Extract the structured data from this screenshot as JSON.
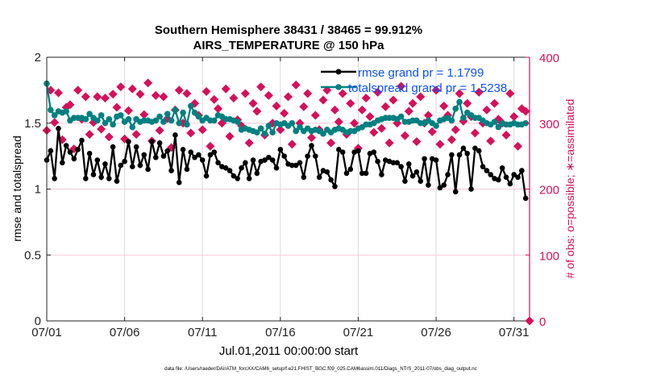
{
  "chart_data": {
    "type": "line",
    "title": "Southern Hemisphere 38431 / 38465 = 99.912%",
    "subtitle": "AIRS_TEMPERATURE @ 150 hPa",
    "xlabel": "Jul.01,2011 00:00:00 start",
    "ylabel": "rmse and totalspread",
    "ylabel_right": "# of obs: o=possible; ∗=assimilated",
    "footer": "data file: /Users/raeder/DAI/ATM_forcXX/CAM6_setup/f.e21.FHIST_BGC.f09_025.CAM6assim.011/Diags_NTrS_2011-07/obs_diag_output.nc",
    "x_unit": "days since 07/01 00Z",
    "x_step_days": 0.25,
    "xlim": [
      0,
      31
    ],
    "ylim": [
      0,
      2
    ],
    "ylim_right": [
      0,
      400
    ],
    "x_ticks": [
      {
        "day": 0,
        "label": "07/01"
      },
      {
        "day": 5,
        "label": "07/06"
      },
      {
        "day": 10,
        "label": "07/11"
      },
      {
        "day": 15,
        "label": "07/16"
      },
      {
        "day": 20,
        "label": "07/21"
      },
      {
        "day": 25,
        "label": "07/26"
      },
      {
        "day": 30,
        "label": "07/31"
      }
    ],
    "y_ticks": [
      {
        "v": 0,
        "label": "0"
      },
      {
        "v": 0.5,
        "label": "0.5"
      },
      {
        "v": 1,
        "label": "1"
      },
      {
        "v": 1.5,
        "label": "1.5"
      },
      {
        "v": 2,
        "label": "2"
      }
    ],
    "y_ticks_right": [
      {
        "v": 0,
        "label": "0"
      },
      {
        "v": 100,
        "label": "100"
      },
      {
        "v": 200,
        "label": "200"
      },
      {
        "v": 300,
        "label": "300"
      },
      {
        "v": 400,
        "label": "400"
      }
    ],
    "grid": true,
    "legend_position": "top-right",
    "colors": {
      "rmse": "#000000",
      "spread": "#008080",
      "obs": "#d6105a",
      "legend_text": "#0a50ff",
      "right_axis": "#d6105a"
    },
    "series": [
      {
        "name": "rmse grand pr = 1.1799",
        "key": "rmse",
        "axis": "left",
        "values": [
          1.22,
          1.29,
          1.08,
          1.46,
          1.2,
          1.33,
          1.28,
          1.23,
          1.3,
          1.37,
          1.08,
          1.27,
          1.11,
          1.22,
          1.09,
          1.19,
          1.08,
          1.32,
          1.06,
          1.18,
          1.21,
          1.36,
          1.17,
          1.32,
          1.18,
          1.26,
          1.15,
          1.36,
          1.24,
          1.35,
          1.25,
          1.29,
          1.14,
          1.41,
          1.05,
          1.3,
          1.15,
          1.28,
          1.24,
          1.26,
          1.22,
          1.1,
          1.26,
          1.28,
          1.2,
          1.17,
          1.16,
          1.14,
          1.1,
          1.08,
          1.16,
          1.2,
          1.08,
          1.22,
          1.12,
          1.21,
          1.22,
          1.24,
          1.22,
          1.16,
          1.3,
          1.25,
          1.19,
          1.18,
          1.18,
          1.2,
          1.09,
          1.25,
          1.33,
          1.25,
          1.09,
          1.14,
          1.13,
          1.07,
          1.02,
          1.3,
          1.28,
          1.12,
          1.15,
          1.28,
          1.29,
          1.12,
          1.12,
          1.27,
          1.28,
          1.21,
          1.11,
          1.22,
          1.21,
          1.2,
          1.2,
          1.17,
          1.06,
          1.19,
          1.1,
          1.13,
          1.06,
          1.23,
          1.03,
          1.23,
          1.22,
          1.01,
          1.03,
          1.11,
          1.26,
          0.98,
          1.26,
          1.31,
          1.27,
          1.0,
          1.31,
          1.29,
          1.17,
          1.14,
          1.11,
          1.08,
          1.07,
          1.16,
          1.09,
          1.04,
          1.11,
          1.09,
          1.14,
          0.93
        ]
      },
      {
        "name": "totalspread grand pr = 1.5238",
        "key": "spread",
        "axis": "left",
        "values": [
          1.8,
          1.6,
          1.56,
          1.59,
          1.58,
          1.59,
          1.52,
          1.54,
          1.54,
          1.54,
          1.53,
          1.57,
          1.54,
          1.52,
          1.56,
          1.5,
          1.53,
          1.49,
          1.55,
          1.56,
          1.51,
          1.53,
          1.47,
          1.53,
          1.51,
          1.52,
          1.52,
          1.51,
          1.52,
          1.55,
          1.51,
          1.57,
          1.52,
          1.6,
          1.5,
          1.58,
          1.49,
          1.63,
          1.58,
          1.55,
          1.52,
          1.54,
          1.52,
          1.52,
          1.56,
          1.55,
          1.53,
          1.53,
          1.52,
          1.51,
          1.45,
          1.46,
          1.45,
          1.44,
          1.43,
          1.46,
          1.42,
          1.48,
          1.43,
          1.5,
          1.49,
          1.5,
          1.48,
          1.5,
          1.44,
          1.47,
          1.44,
          1.46,
          1.44,
          1.45,
          1.44,
          1.42,
          1.45,
          1.43,
          1.45,
          1.46,
          1.45,
          1.43,
          1.44,
          1.44,
          1.46,
          1.47,
          1.49,
          1.49,
          1.5,
          1.52,
          1.53,
          1.54,
          1.54,
          1.54,
          1.53,
          1.55,
          1.51,
          1.51,
          1.52,
          1.52,
          1.5,
          1.5,
          1.52,
          1.5,
          1.48,
          1.52,
          1.53,
          1.54,
          1.52,
          1.61,
          1.66,
          1.54,
          1.58,
          1.56,
          1.54,
          1.54,
          1.52,
          1.5,
          1.49,
          1.51,
          1.47,
          1.5,
          1.49,
          1.49,
          1.5,
          1.49,
          1.49,
          1.5
        ]
      },
      {
        "name": "obs assimilated",
        "key": "obs",
        "axis": "right",
        "values": [
          289,
          350,
          301,
          346,
          275,
          324,
          328,
          261,
          350,
          306,
          340,
          283,
          301,
          340,
          291,
          338,
          279,
          344,
          324,
          355,
          276,
          319,
          352,
          283,
          344,
          313,
          361,
          273,
          342,
          289,
          340,
          307,
          263,
          320,
          350,
          300,
          345,
          285,
          330,
          312,
          290,
          348,
          265,
          336,
          322,
          300,
          352,
          280,
          338,
          305,
          296,
          345,
          270,
          330,
          318,
          355,
          282,
          342,
          300,
          326,
          290,
          315,
          340,
          268,
          358,
          300,
          325,
          345,
          278,
          312,
          290,
          335,
          350,
          270,
          320,
          302,
          345,
          283,
          330,
          300,
          262,
          320,
          338,
          310,
          286,
          347,
          292,
          325,
          270,
          335,
          300,
          356,
          281,
          318,
          330,
          272,
          340,
          300,
          312,
          287,
          350,
          268,
          326,
          312,
          275,
          290,
          345,
          303,
          330,
          310,
          285,
          347,
          300,
          320,
          273,
          330,
          306,
          300,
          282,
          345,
          310,
          265,
          322,
          318,
          0
        ]
      }
    ]
  }
}
